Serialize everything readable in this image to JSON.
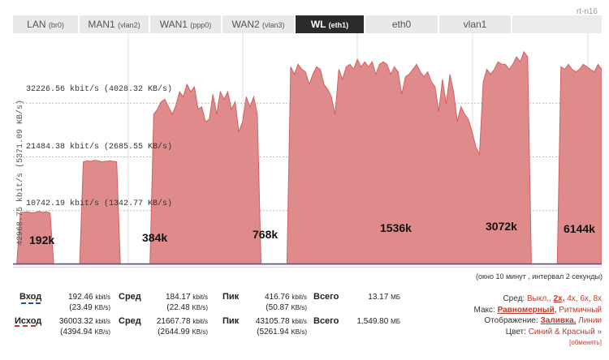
{
  "host": "rt-n16",
  "tabs": [
    {
      "name": "LAN",
      "iface": "(br0)",
      "active": false
    },
    {
      "name": "MAN1",
      "iface": "(vlan2)",
      "active": false
    },
    {
      "name": "WAN1",
      "iface": "(ppp0)",
      "active": false
    },
    {
      "name": "WAN2",
      "iface": "(vlan3)",
      "active": false
    },
    {
      "name": "WL",
      "iface": "(eth1)",
      "active": true
    },
    {
      "name": "eth0",
      "iface": "",
      "active": false
    },
    {
      "name": "vlan1",
      "iface": "",
      "active": false
    }
  ],
  "graph": {
    "y_axis_label": "42968.75 kbit/s (5371.09 KB/s)",
    "gridlines": [
      "32226.56 kbit/s (4028.32 KB/s)",
      "21484.38 kbit/s (2685.55 KB/s)",
      "10742.19 kbit/s (1342.77 KB/s)"
    ],
    "segment_labels": [
      "192k",
      "384k",
      "768k",
      "1536k",
      "3072k",
      "6144k"
    ],
    "window_note": "(окно 10 минут , интервал 2 секунды)",
    "colors": {
      "fill": "#e08b8b",
      "stroke": "#d35f5f",
      "inbound": "#3b5bb5",
      "grid": "#bbbbbb"
    }
  },
  "chart_data": {
    "type": "area",
    "y_unit": "kbit/s",
    "ylim": [
      0,
      42968.75
    ],
    "y_ticks": [
      10742.19,
      21484.38,
      32226.56
    ],
    "series": [
      {
        "name": "Исход",
        "values": [
          0,
          0,
          10400,
          10400,
          10500,
          10300,
          10400,
          10600,
          10400,
          10500,
          10300,
          0,
          0,
          0,
          0,
          0,
          0,
          0,
          0,
          20500,
          20700,
          20600,
          20800,
          20700,
          20500,
          20600,
          20700,
          20600,
          20500,
          0,
          0,
          0,
          0,
          0,
          0,
          0,
          0,
          0,
          30000,
          31000,
          32500,
          33000,
          31500,
          30000,
          31800,
          34500,
          33500,
          36000,
          34500,
          35500,
          31000,
          31500,
          28500,
          29000,
          34000,
          30000,
          34500,
          33000,
          34500,
          31000,
          32500,
          26500,
          28500,
          33500,
          31500,
          33500,
          30000,
          0,
          0,
          0,
          0,
          0,
          0,
          0,
          0,
          39500,
          38000,
          40000,
          39000,
          38500,
          36000,
          38000,
          39500,
          39000,
          36000,
          35000,
          33500,
          30000,
          39000,
          37000,
          39500,
          40000,
          39000,
          41000,
          39500,
          40500,
          39500,
          40500,
          38000,
          40000,
          40500,
          40000,
          38000,
          39500,
          38500,
          34000,
          37500,
          38000,
          39000,
          40000,
          38500,
          37500,
          38500,
          36500,
          35500,
          30500,
          37000,
          32000,
          38000,
          34500,
          28500,
          31500,
          30000,
          29000,
          26500,
          23500,
          22000,
          36500,
          39000,
          38000,
          39000,
          40500,
          40000,
          40000,
          39000,
          40000,
          41500,
          40500,
          42500,
          41500,
          0,
          0,
          0,
          0,
          0,
          0,
          0,
          0,
          39500,
          39000,
          40000,
          39000,
          38500,
          39000,
          40000,
          39500,
          39000,
          38500,
          40000,
          39000
        ]
      },
      {
        "name": "Вход",
        "values": [
          0,
          0,
          0,
          0,
          0,
          0,
          0,
          0,
          0,
          0,
          0,
          0,
          0,
          0,
          0,
          0,
          0,
          0,
          0,
          0,
          0,
          0,
          0,
          0,
          0,
          0,
          0,
          0,
          0,
          0,
          0,
          0,
          0,
          0,
          0,
          0,
          0,
          0,
          0,
          0,
          0,
          0,
          0,
          0,
          0,
          0,
          0,
          0,
          0,
          0,
          0,
          0,
          0,
          0,
          0,
          0,
          0,
          0,
          0,
          0,
          0,
          0,
          0,
          0,
          0,
          0,
          0,
          0,
          0,
          0,
          0,
          0,
          0,
          0,
          0,
          0,
          0,
          0,
          0,
          0,
          0,
          0,
          0,
          0,
          0,
          0,
          0,
          0,
          0,
          0,
          0,
          0,
          0,
          0,
          0,
          0,
          0,
          0,
          0,
          0,
          0,
          0,
          0,
          0,
          0,
          0,
          0,
          0,
          0,
          0,
          0,
          0,
          0,
          0,
          0,
          0,
          0,
          0,
          0,
          0,
          0,
          0,
          0,
          0,
          0,
          0,
          0,
          0,
          0,
          0,
          0,
          0,
          0,
          0,
          0,
          0,
          0,
          0,
          0,
          0,
          0,
          0,
          0,
          0,
          0,
          0,
          0,
          0,
          0,
          0,
          0,
          0,
          0,
          0,
          0,
          0,
          0,
          0,
          0,
          0,
          0,
          0,
          0,
          0,
          0,
          0,
          0,
          0,
          0,
          0,
          0,
          0
        ]
      }
    ]
  },
  "stats": {
    "in": {
      "label": "Вход",
      "cur": "192.46",
      "cur_unit": "kbit/s",
      "cur_sub": "(23.49",
      "cur_sub_unit": "KB/s)",
      "avg_label": "Сред",
      "avg": "184.17",
      "avg_unit": "kbit/s",
      "avg_sub": "(22.48",
      "avg_sub_unit": "KB/s)",
      "peak_label": "Пик",
      "peak": "416.76",
      "peak_unit": "kbit/s",
      "peak_sub": "(50.87",
      "peak_sub_unit": "KB/s)",
      "total_label": "Всего",
      "total": "13.17",
      "total_unit": "МБ"
    },
    "out": {
      "label": "Исход",
      "cur": "36003.32",
      "cur_unit": "kbit/s",
      "cur_sub": "(4394.94",
      "cur_sub_unit": "KB/s)",
      "avg_label": "Сред",
      "avg": "21667.78",
      "avg_unit": "kbit/s",
      "avg_sub": "(2644.99",
      "avg_sub_unit": "KB/s)",
      "peak_label": "Пик",
      "peak": "43105.78",
      "peak_unit": "kbit/s",
      "peak_sub": "(5261.94",
      "peak_sub_unit": "KB/s)",
      "total_label": "Всего",
      "total": "1,549.80",
      "total_unit": "МБ"
    }
  },
  "options": {
    "avg_label": "Сред:",
    "avg_opts": [
      "Выкл.,",
      "2x,",
      "4x,",
      "6x,",
      "8x"
    ],
    "max_label": "Макс:",
    "max_opts": [
      "Равномерный,",
      "Ритмичный"
    ],
    "display_label": "Отображение:",
    "display_opts": [
      "Заливка,",
      "Линии"
    ],
    "color_label": "Цвет:",
    "color_value": "Синий & Красный »",
    "change_link": "[обменять]"
  }
}
